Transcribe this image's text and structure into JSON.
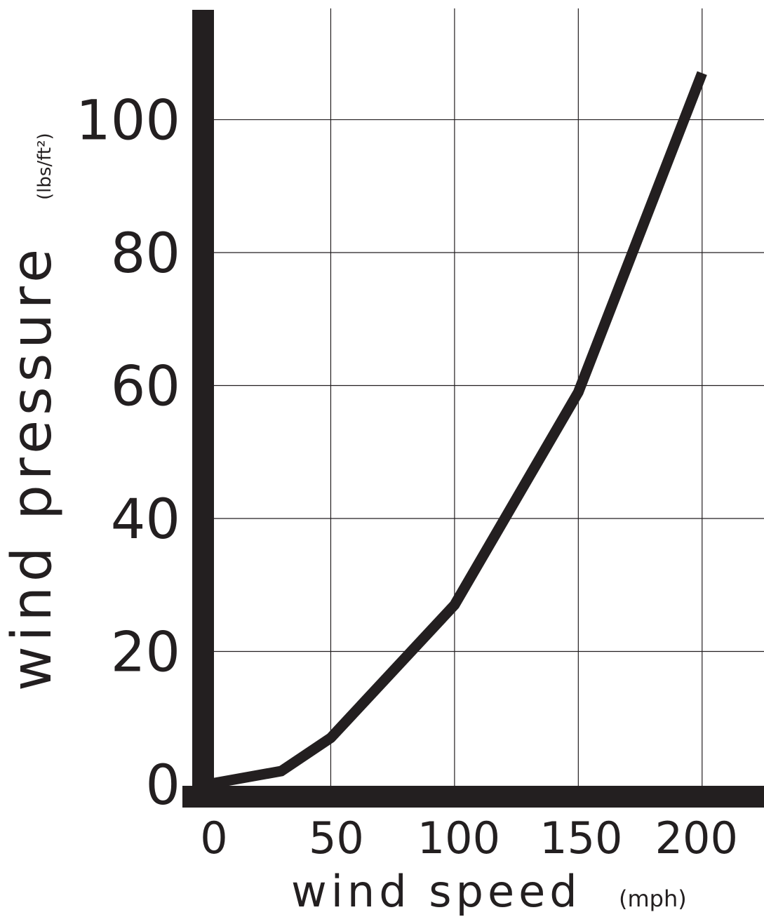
{
  "chart_data": {
    "type": "line",
    "xlabel": "wind speed",
    "xlabel_unit": "(mph)",
    "ylabel": "wind pressure",
    "ylabel_unit": "(lbs/ft²)",
    "x_ticks": [
      "0",
      "50",
      "100",
      "150",
      "200"
    ],
    "y_ticks": [
      "0",
      "20",
      "40",
      "60",
      "80",
      "100"
    ],
    "xlim": [
      0,
      225
    ],
    "ylim": [
      0,
      118
    ],
    "grid": true,
    "series": [
      {
        "x": [
          0,
          30,
          50,
          100,
          150,
          200
        ],
        "y": [
          0,
          2,
          7,
          27,
          59,
          107
        ]
      }
    ],
    "colors": {
      "line": "#231f20",
      "axis": "#231f20",
      "grid": "#231f20"
    }
  }
}
